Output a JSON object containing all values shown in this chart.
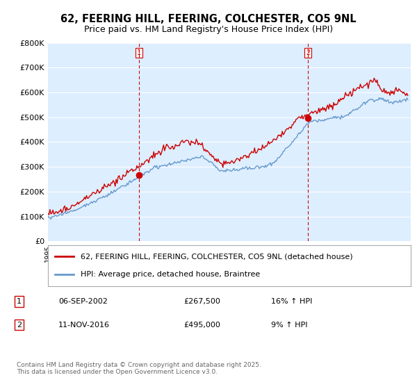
{
  "title_line1": "62, FEERING HILL, FEERING, COLCHESTER, CO5 9NL",
  "title_line2": "Price paid vs. HM Land Registry's House Price Index (HPI)",
  "background_color": "#ffffff",
  "plot_bg_color": "#ddeeff",
  "grid_color": "#ffffff",
  "red_line_color": "#cc0000",
  "blue_line_color": "#6699cc",
  "sale1_date_num": 2002.68,
  "sale1_price": 267500,
  "sale1_label": "1",
  "sale2_date_num": 2016.86,
  "sale2_price": 495000,
  "sale2_label": "2",
  "xmin": 1995,
  "xmax": 2025.5,
  "ymin": 0,
  "ymax": 800000,
  "yticks": [
    0,
    100000,
    200000,
    300000,
    400000,
    500000,
    600000,
    700000,
    800000
  ],
  "ytick_labels": [
    "£0",
    "£100K",
    "£200K",
    "£300K",
    "£400K",
    "£500K",
    "£600K",
    "£700K",
    "£800K"
  ],
  "legend_label1": "62, FEERING HILL, FEERING, COLCHESTER, CO5 9NL (detached house)",
  "legend_label2": "HPI: Average price, detached house, Braintree",
  "note1_box": "1",
  "note1_date": "06-SEP-2002",
  "note1_price": "£267,500",
  "note1_hpi": "16% ↑ HPI",
  "note2_box": "2",
  "note2_date": "11-NOV-2016",
  "note2_price": "£495,000",
  "note2_hpi": "9% ↑ HPI",
  "footer": "Contains HM Land Registry data © Crown copyright and database right 2025.\nThis data is licensed under the Open Government Licence v3.0."
}
